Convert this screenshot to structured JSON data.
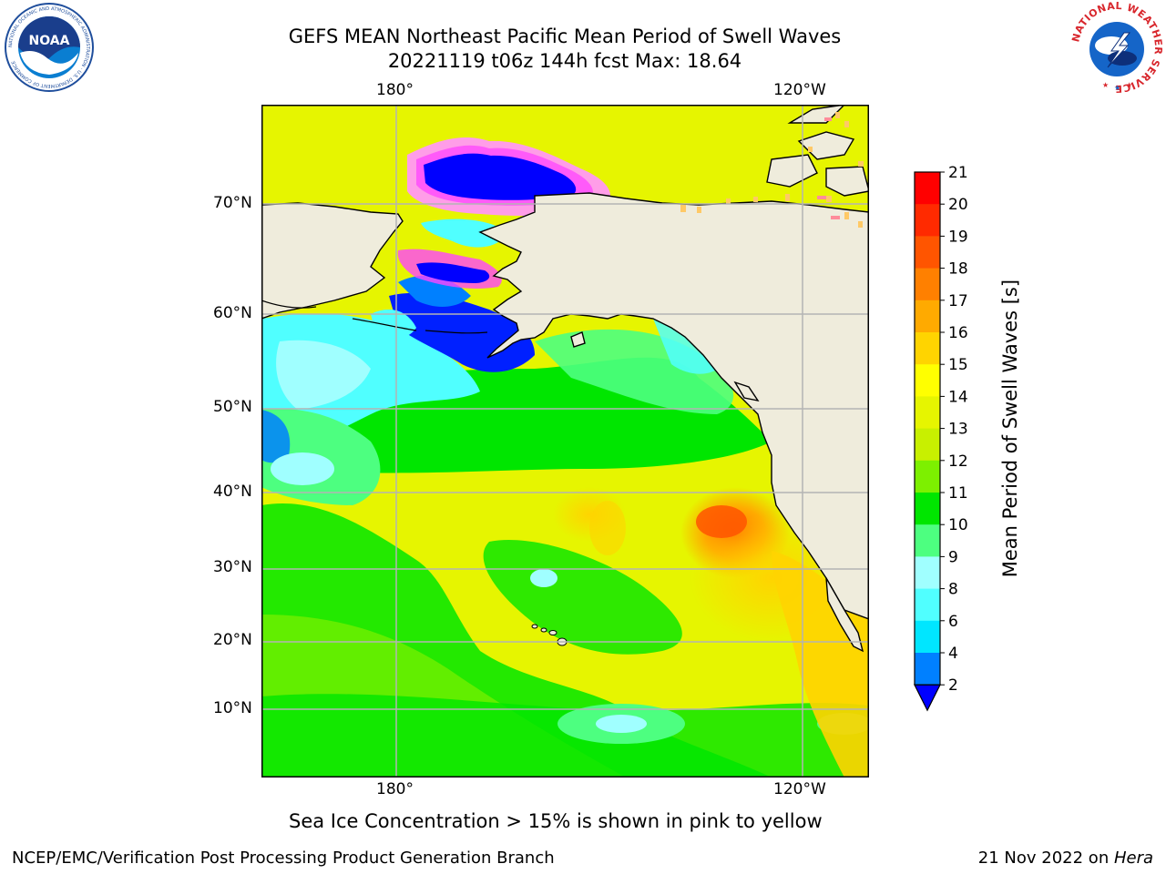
{
  "title": {
    "line1": "GEFS MEAN Northeast Pacific Mean Period of Swell Waves",
    "line2": "20221119 t06z 144h fcst   Max: 18.64"
  },
  "map": {
    "lon_labels_top": [
      "180°",
      "120°W"
    ],
    "lon_labels_bottom": [
      "180°",
      "120°W"
    ],
    "lat_labels": [
      "70°N",
      "60°N",
      "50°N",
      "40°N",
      "30°N",
      "20°N",
      "10°N"
    ],
    "colors": {
      "land": "#efecdc",
      "coast": "#000000",
      "grid": "#b4b4b4"
    }
  },
  "colorbar": {
    "label": "Mean Period of Swell Waves [s]",
    "ticks": [
      "21",
      "20",
      "19",
      "18",
      "17",
      "16",
      "15",
      "14",
      "13",
      "12",
      "11",
      "10",
      "9",
      "8",
      "6",
      "4",
      "2"
    ],
    "bins": [
      {
        "from": 20,
        "to": 21,
        "color": "#ff0000"
      },
      {
        "from": 19,
        "to": 20,
        "color": "#ff2a00"
      },
      {
        "from": 18,
        "to": 19,
        "color": "#ff5500"
      },
      {
        "from": 17,
        "to": 18,
        "color": "#ff8000"
      },
      {
        "from": 16,
        "to": 17,
        "color": "#ffaa00"
      },
      {
        "from": 15,
        "to": 16,
        "color": "#ffd400"
      },
      {
        "from": 14,
        "to": 15,
        "color": "#ffff00"
      },
      {
        "from": 13,
        "to": 14,
        "color": "#e6f500"
      },
      {
        "from": 12,
        "to": 13,
        "color": "#c8f000"
      },
      {
        "from": 11,
        "to": 12,
        "color": "#7df000"
      },
      {
        "from": 10,
        "to": 11,
        "color": "#00e600"
      },
      {
        "from": 9,
        "to": 10,
        "color": "#4dff80"
      },
      {
        "from": 8,
        "to": 9,
        "color": "#a0ffff"
      },
      {
        "from": 6,
        "to": 8,
        "color": "#50ffff"
      },
      {
        "from": 4,
        "to": 6,
        "color": "#00e6ff"
      },
      {
        "from": 2,
        "to": 4,
        "color": "#0080ff"
      }
    ],
    "under_color": "#0000ff"
  },
  "note": "Sea Ice Concentration > 15% is shown in pink to yellow",
  "footer": {
    "left": "NCEP/EMC/Verification Post Processing Product Generation Branch",
    "date": "21 Nov 2022 on ",
    "host": "Hera"
  },
  "logos": {
    "noaa_text": "NOAA",
    "noaa_ring_text": "NATIONAL OCEANIC AND ATMOSPHERIC ADMINISTRATION · U.S. DEPARTMENT OF COMMERCE",
    "nws_ring_text": "NATIONAL WEATHER SERVICE"
  }
}
